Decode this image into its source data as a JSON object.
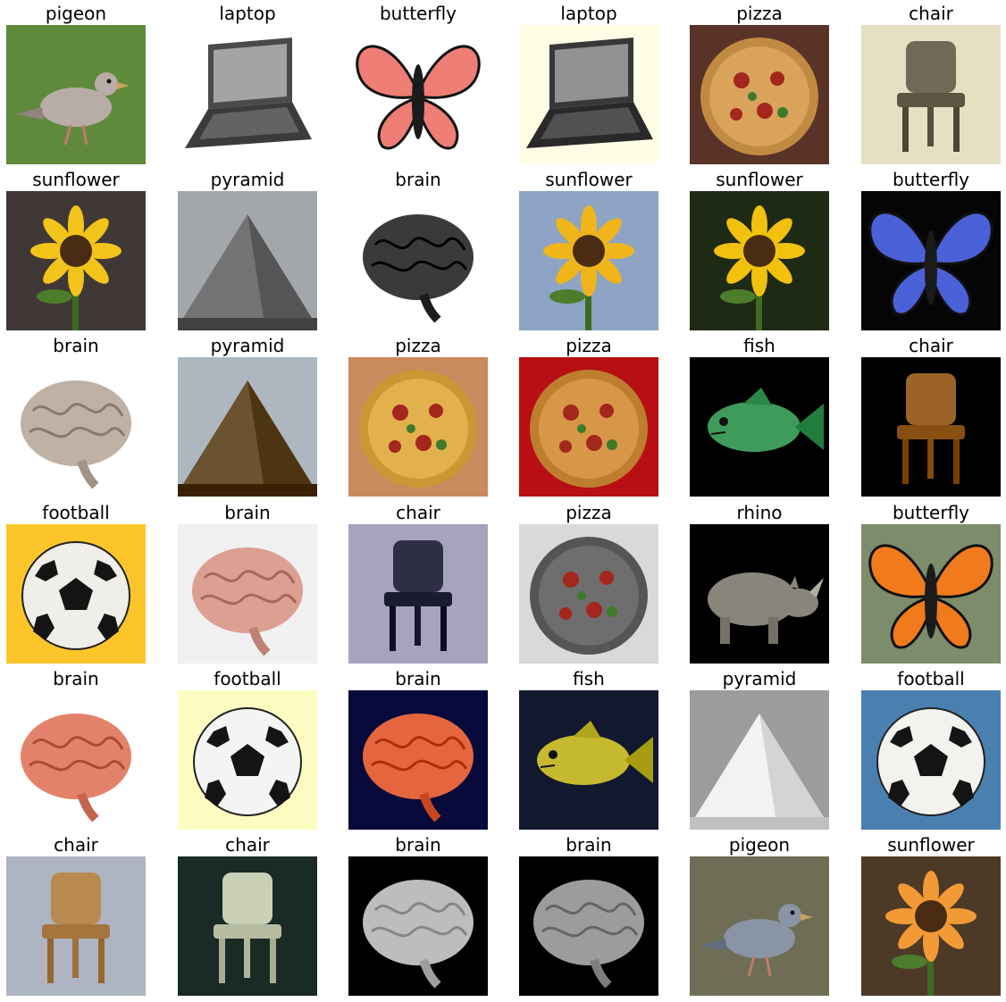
{
  "grid": {
    "rows": [
      {
        "cells": [
          {
            "label": "pigeon",
            "icon": "pigeon-icon",
            "bg": "#5f8a3c",
            "fg": "#b7aca6"
          },
          {
            "label": "laptop",
            "icon": "laptop-icon",
            "bg": "#ffffff",
            "fg": "#4a4a4a"
          },
          {
            "label": "butterfly",
            "icon": "butterfly-icon",
            "bg": "#ffffff",
            "fg": "#ee7e76"
          },
          {
            "label": "laptop",
            "icon": "laptop-icon",
            "bg": "#fffde6",
            "fg": "#383838"
          },
          {
            "label": "pizza",
            "icon": "pizza-icon",
            "bg": "#5a3328",
            "fg": "#d9a35c"
          },
          {
            "label": "chair",
            "icon": "chair-icon",
            "bg": "#e6e0c2",
            "fg": "#6f6a55"
          }
        ]
      },
      {
        "cells": [
          {
            "label": "sunflower",
            "icon": "sunflower-icon",
            "bg": "#3f3836",
            "fg": "#f2c41a"
          },
          {
            "label": "pyramid",
            "icon": "pyramid-icon",
            "bg": "#a3a7ac",
            "fg": "#737373"
          },
          {
            "label": "brain",
            "icon": "brain-icon",
            "bg": "#ffffff",
            "fg": "#3a3a3a"
          },
          {
            "label": "sunflower",
            "icon": "sunflower-icon",
            "bg": "#8da4c4",
            "fg": "#f0b51a"
          },
          {
            "label": "sunflower",
            "icon": "sunflower-icon",
            "bg": "#1f2a14",
            "fg": "#f2c10e"
          },
          {
            "label": "butterfly",
            "icon": "butterfly-icon",
            "bg": "#050505",
            "fg": "#4b61d8"
          }
        ]
      },
      {
        "cells": [
          {
            "label": "brain",
            "icon": "brain-icon",
            "bg": "#ffffff",
            "fg": "#bfb1a3"
          },
          {
            "label": "pyramid",
            "icon": "pyramid-icon",
            "bg": "#aeb7bf",
            "fg": "#6b5230"
          },
          {
            "label": "pizza",
            "icon": "pizza-icon",
            "bg": "#c98a5e",
            "fg": "#e3b04e"
          },
          {
            "label": "pizza",
            "icon": "pizza-icon",
            "bg": "#b70f14",
            "fg": "#d89748"
          },
          {
            "label": "fish",
            "icon": "fish-icon",
            "bg": "#000000",
            "fg": "#3f9b5c"
          },
          {
            "label": "chair",
            "icon": "chair-icon",
            "bg": "#000000",
            "fg": "#9b6426"
          }
        ]
      },
      {
        "cells": [
          {
            "label": "football",
            "icon": "football-icon",
            "bg": "#fcc62a",
            "fg": "#f0eee8"
          },
          {
            "label": "brain",
            "icon": "brain-icon",
            "bg": "#f0f0f0",
            "fg": "#dca093"
          },
          {
            "label": "chair",
            "icon": "chair-icon",
            "bg": "#a7a3bf",
            "fg": "#2e2f45"
          },
          {
            "label": "pizza",
            "icon": "pizza-icon",
            "bg": "#d9d9d9",
            "fg": "#6e6e6e"
          },
          {
            "label": "rhino",
            "icon": "rhino-icon",
            "bg": "#000000",
            "fg": "#8a857a"
          },
          {
            "label": "butterfly",
            "icon": "butterfly-icon",
            "bg": "#7d8c6a",
            "fg": "#f07a1c"
          }
        ]
      },
      {
        "cells": [
          {
            "label": "brain",
            "icon": "brain-icon",
            "bg": "#ffffff",
            "fg": "#e3826b"
          },
          {
            "label": "football",
            "icon": "football-icon",
            "bg": "#fdfcc0",
            "fg": "#f4f4f4"
          },
          {
            "label": "brain",
            "icon": "brain-icon",
            "bg": "#070a3a",
            "fg": "#e5653e"
          },
          {
            "label": "fish",
            "icon": "fish-icon",
            "bg": "#12182e",
            "fg": "#c5b92f"
          },
          {
            "label": "pyramid",
            "icon": "pyramid-icon",
            "bg": "#9c9c9c",
            "fg": "#f2f2f2"
          },
          {
            "label": "football",
            "icon": "football-icon",
            "bg": "#4a80b0",
            "fg": "#f2f2ee"
          }
        ]
      },
      {
        "cells": [
          {
            "label": "chair",
            "icon": "chair-icon",
            "bg": "#aeb4c2",
            "fg": "#b88a52"
          },
          {
            "label": "chair",
            "icon": "chair-icon",
            "bg": "#1a2a24",
            "fg": "#c9d0b6"
          },
          {
            "label": "brain",
            "icon": "brain-icon",
            "bg": "#000000",
            "fg": "#bdbdbd"
          },
          {
            "label": "brain",
            "icon": "brain-icon",
            "bg": "#000000",
            "fg": "#9c9c9c"
          },
          {
            "label": "pigeon",
            "icon": "pigeon-icon",
            "bg": "#6f6d56",
            "fg": "#8994a4"
          },
          {
            "label": "sunflower",
            "icon": "sunflower-icon",
            "bg": "#4d3a26",
            "fg": "#f29a35"
          }
        ]
      }
    ]
  }
}
